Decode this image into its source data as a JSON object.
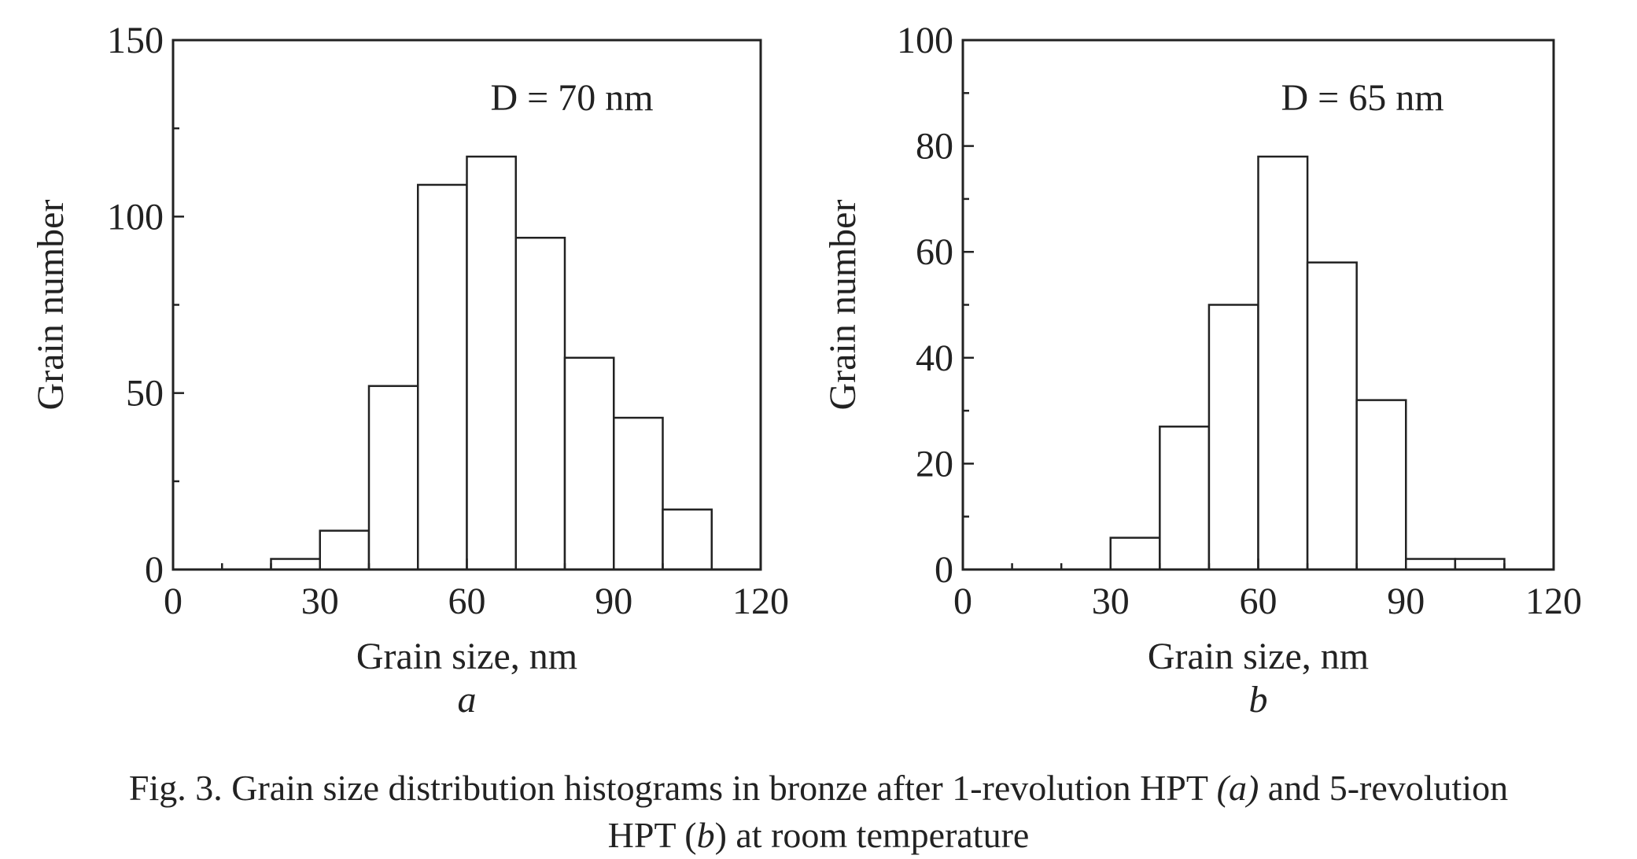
{
  "chart_data": [
    {
      "type": "bar",
      "panel": "a",
      "annotation": "D = 70 nm",
      "xlabel": "Grain size, nm",
      "ylabel": "Grain number",
      "xlim": [
        0,
        120
      ],
      "ylim": [
        0,
        150
      ],
      "xticks": [
        0,
        30,
        60,
        90,
        120
      ],
      "yticks": [
        0,
        50,
        100,
        150
      ],
      "bin_width": 10,
      "bins": [
        {
          "x0": 20,
          "value": 3
        },
        {
          "x0": 30,
          "value": 11
        },
        {
          "x0": 40,
          "value": 52
        },
        {
          "x0": 50,
          "value": 109
        },
        {
          "x0": 60,
          "value": 117
        },
        {
          "x0": 70,
          "value": 94
        },
        {
          "x0": 80,
          "value": 60
        },
        {
          "x0": 90,
          "value": 43
        },
        {
          "x0": 100,
          "value": 17
        }
      ]
    },
    {
      "type": "bar",
      "panel": "b",
      "annotation": "D = 65 nm",
      "xlabel": "Grain size, nm",
      "ylabel": "Grain number",
      "xlim": [
        0,
        120
      ],
      "ylim": [
        0,
        100
      ],
      "xticks": [
        0,
        30,
        60,
        90,
        120
      ],
      "yticks": [
        0,
        20,
        40,
        60,
        80,
        100
      ],
      "bin_width": 10,
      "bins": [
        {
          "x0": 30,
          "value": 6
        },
        {
          "x0": 40,
          "value": 27
        },
        {
          "x0": 50,
          "value": 50
        },
        {
          "x0": 60,
          "value": 78
        },
        {
          "x0": 70,
          "value": 58
        },
        {
          "x0": 80,
          "value": 32
        },
        {
          "x0": 90,
          "value": 2
        },
        {
          "x0": 100,
          "value": 2
        }
      ]
    }
  ],
  "caption": {
    "line1_prefix": "Fig. 3. Grain size distribution histograms in bronze after 1-revolution HPT ",
    "line1_a": "(a)",
    "line1_suffix": " and 5-revolution",
    "line2_prefix": "HPT (",
    "line2_b": "b",
    "line2_suffix": ") at room temperature"
  }
}
